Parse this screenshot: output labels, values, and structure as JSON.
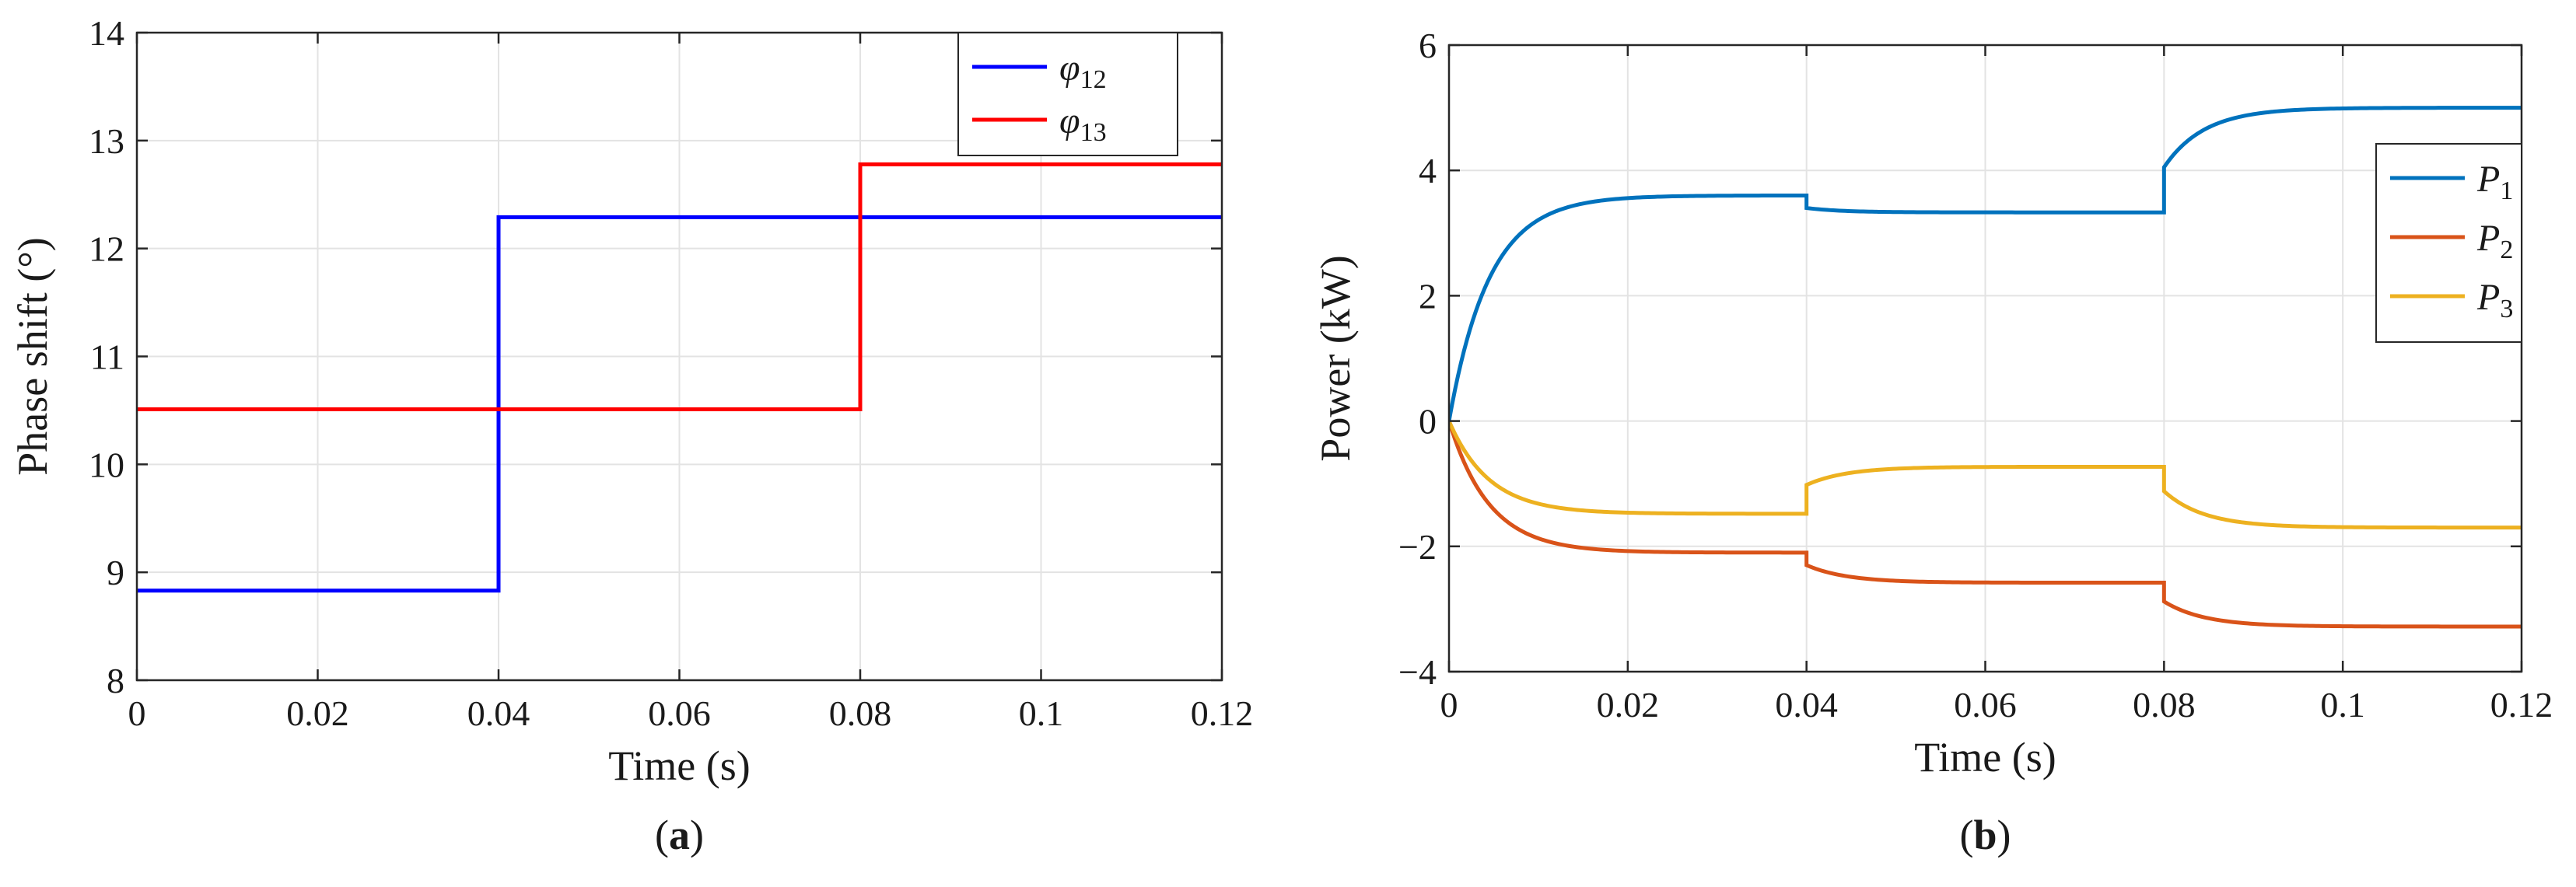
{
  "chart_data": [
    {
      "type": "line",
      "panel": "(a)",
      "panel_letter": "a",
      "xlabel": "Time (s)",
      "ylabel": "Phase shift (°)",
      "xlim": [
        0,
        0.12
      ],
      "ylim": [
        8,
        14
      ],
      "xticks": [
        0,
        0.02,
        0.04,
        0.06,
        0.08,
        0.1,
        0.12
      ],
      "xtick_labels": [
        "0",
        "0.02",
        "0.04",
        "0.06",
        "0.08",
        "0.1",
        "0.12"
      ],
      "yticks": [
        8,
        9,
        10,
        11,
        12,
        13,
        14
      ],
      "ytick_labels": [
        "8",
        "9",
        "10",
        "11",
        "12",
        "13",
        "14"
      ],
      "grid": true,
      "legend_position": "top-right",
      "series": [
        {
          "name": "φ12",
          "symbol": "φ",
          "subscript": "12",
          "color": "#0000ff",
          "points": [
            [
              0,
              8.83
            ],
            [
              0.04,
              8.83
            ],
            [
              0.04,
              12.29
            ],
            [
              0.12,
              12.29
            ]
          ]
        },
        {
          "name": "φ13",
          "symbol": "φ",
          "subscript": "13",
          "color": "#ff0000",
          "points": [
            [
              0,
              10.51
            ],
            [
              0.08,
              10.51
            ],
            [
              0.08,
              12.78
            ],
            [
              0.12,
              12.78
            ]
          ]
        }
      ]
    },
    {
      "type": "line",
      "panel": "(b)",
      "panel_letter": "b",
      "xlabel": "Time (s)",
      "ylabel": "Power (kW)",
      "xlim": [
        0,
        0.12
      ],
      "ylim": [
        -4,
        6
      ],
      "xticks": [
        0,
        0.02,
        0.04,
        0.06,
        0.08,
        0.1,
        0.12
      ],
      "xtick_labels": [
        "0",
        "0.02",
        "0.04",
        "0.06",
        "0.08",
        "0.1",
        "0.12"
      ],
      "yticks": [
        -4,
        -2,
        0,
        2,
        4,
        6
      ],
      "ytick_labels": [
        "−4",
        "−2",
        "0",
        "2",
        "4",
        "6"
      ],
      "grid": true,
      "legend_position": "top-right",
      "series": [
        {
          "name": "P1",
          "symbol": "P",
          "subscript": "1",
          "color": "#0072bd",
          "segments": [
            {
              "t0": 0,
              "t1": 0.04,
              "start": 0,
              "final": 3.6,
              "tau": 0.0045
            },
            {
              "t0": 0.04,
              "t1": 0.08,
              "start": 3.4,
              "final": 3.33,
              "tau": 0.004
            },
            {
              "t0": 0.08,
              "t1": 0.12,
              "start": 4.05,
              "final": 5.0,
              "tau": 0.0045
            }
          ]
        },
        {
          "name": "P2",
          "symbol": "P",
          "subscript": "2",
          "color": "#d95319",
          "segments": [
            {
              "t0": 0,
              "t1": 0.04,
              "start": 0,
              "final": -2.1,
              "tau": 0.0045
            },
            {
              "t0": 0.04,
              "t1": 0.08,
              "start": -2.3,
              "final": -2.58,
              "tau": 0.0045
            },
            {
              "t0": 0.08,
              "t1": 0.12,
              "start": -2.88,
              "final": -3.28,
              "tau": 0.0045
            }
          ]
        },
        {
          "name": "P3",
          "symbol": "P",
          "subscript": "3",
          "color": "#edb120",
          "segments": [
            {
              "t0": 0,
              "t1": 0.04,
              "start": 0,
              "final": -1.48,
              "tau": 0.0045
            },
            {
              "t0": 0.04,
              "t1": 0.08,
              "start": -1.02,
              "final": -0.73,
              "tau": 0.0045
            },
            {
              "t0": 0.08,
              "t1": 0.12,
              "start": -1.12,
              "final": -1.7,
              "tau": 0.0045
            }
          ]
        }
      ]
    }
  ]
}
